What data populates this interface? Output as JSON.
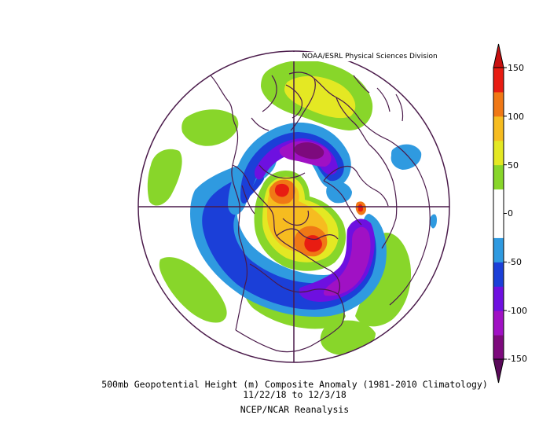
{
  "credit": "NOAA/ESRL Physical Sciences Division",
  "caption": {
    "title": "500mb Geopotential Height (m) Composite Anomaly (1981-2010 Climatology)",
    "dates": "11/22/18  to 12/3/18",
    "source": "NCEP/NCAR Reanalysis"
  },
  "colorbar": {
    "labels": [
      "150",
      "100",
      "50",
      "0",
      "-50",
      "-100",
      "-150"
    ],
    "colors": [
      "#7d0a7d",
      "#a011c4",
      "#6e10e0",
      "#1b3fd8",
      "#2f9ae0",
      "#ffffff",
      "#ffffff",
      "#88d62a",
      "#e4e823",
      "#f6bc20",
      "#f07815",
      "#e81c12"
    ]
  },
  "map": {
    "projection": "north-polar-stereographic",
    "anomaly_colors": {
      "deep_purple": "#7d0a7d",
      "magenta": "#a011c4",
      "violet": "#6e10e0",
      "blue": "#1b3fd8",
      "light_blue": "#2f9ae0",
      "green": "#88d62a",
      "yellow": "#e4e823",
      "gold": "#f6bc20",
      "orange": "#f07815",
      "red": "#e81c12"
    },
    "coastline_color": "#4a1a4a"
  }
}
